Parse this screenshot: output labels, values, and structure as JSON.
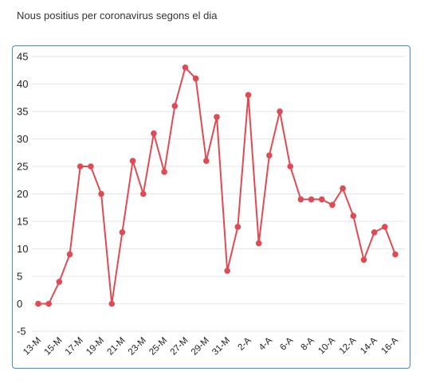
{
  "title": "Nous positius per coronavirus segons el dia",
  "colors": {
    "line": "#e04a53",
    "frame": "#3d8fd6",
    "grid": "#e6e6e6"
  },
  "chart_data": {
    "type": "line",
    "title": "Nous positius per coronavirus segons el dia",
    "xlabel": "",
    "ylabel": "",
    "ylim": [
      -5,
      45
    ],
    "y_ticks": [
      -5,
      0,
      5,
      10,
      15,
      20,
      25,
      30,
      35,
      40,
      45
    ],
    "grid": true,
    "legend": "none",
    "x": [
      "13-M",
      "14-M",
      "15-M",
      "16-M",
      "17-M",
      "18-M",
      "19-M",
      "20-M",
      "21-M",
      "22-M",
      "23-M",
      "24-M",
      "25-M",
      "26-M",
      "27-M",
      "28-M",
      "29-M",
      "30-M",
      "31-M",
      "1-A",
      "2-A",
      "3-A",
      "4-A",
      "5-A",
      "6-A",
      "7-A",
      "8-A",
      "9-A",
      "10-A",
      "11-A",
      "12-A",
      "13-A",
      "14-A",
      "15-A",
      "16-A"
    ],
    "x_tick_labels": [
      "13-M",
      "",
      "15-M",
      "",
      "17-M",
      "",
      "19-M",
      "",
      "21-M",
      "",
      "23-M",
      "",
      "25-M",
      "",
      "27-M",
      "",
      "29-M",
      "",
      "31-M",
      "",
      "2-A",
      "",
      "4-A",
      "",
      "6-A",
      "",
      "8-A",
      "",
      "10-A",
      "",
      "12-A",
      "",
      "14-A",
      "",
      "16-A"
    ],
    "series": [
      {
        "values": [
          0,
          0,
          4,
          9,
          25,
          25,
          20,
          0,
          13,
          26,
          20,
          31,
          24,
          36,
          43,
          41,
          26,
          34,
          6,
          14,
          38,
          11,
          27,
          35,
          25,
          19,
          19,
          19,
          18,
          21,
          16,
          8,
          13,
          14,
          9
        ]
      }
    ]
  }
}
